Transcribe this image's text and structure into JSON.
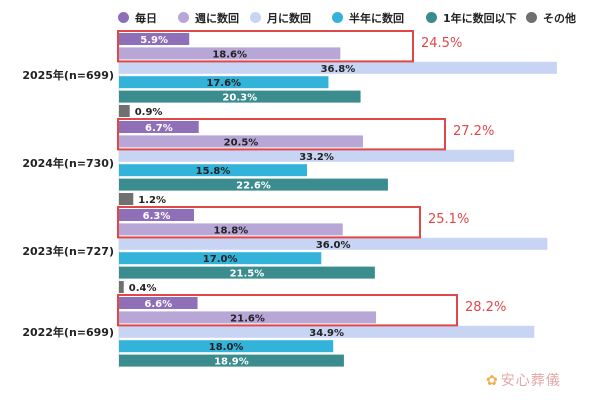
{
  "chart_data": {
    "type": "bar",
    "orientation": "horizontal",
    "legend": [
      {
        "name": "毎日",
        "color": "#8e6fb8"
      },
      {
        "name": "週に数回",
        "color": "#b7a6d6"
      },
      {
        "name": "月に数回",
        "color": "#c7d4f4"
      },
      {
        "name": "半年に数回",
        "color": "#33b2da"
      },
      {
        "name": "1年に数回以下",
        "color": "#3a8c8e"
      },
      {
        "name": "その他",
        "color": "#707070"
      }
    ],
    "groups": [
      {
        "label": "2025年(n=699)",
        "values": [
          5.9,
          18.6,
          36.8,
          17.6,
          20.3,
          0.9
        ],
        "value_labels": [
          "5.9%",
          "18.6%",
          "36.8%",
          "17.6%",
          "20.3%",
          "0.9%"
        ],
        "highlight_sum": "24.5%"
      },
      {
        "label": "2024年(n=730)",
        "values": [
          6.7,
          20.5,
          33.2,
          15.8,
          22.6,
          1.2
        ],
        "value_labels": [
          "6.7%",
          "20.5%",
          "33.2%",
          "15.8%",
          "22.6%",
          "1.2%"
        ],
        "highlight_sum": "27.2%"
      },
      {
        "label": "2023年(n=727)",
        "values": [
          6.3,
          18.8,
          36.0,
          17.0,
          21.5,
          0.4
        ],
        "value_labels": [
          "6.3%",
          "18.8%",
          "36.0%",
          "17.0%",
          "21.5%",
          "0.4%"
        ],
        "highlight_sum": "25.1%"
      },
      {
        "label": "2022年(n=699)",
        "values": [
          6.6,
          21.6,
          34.9,
          18.0,
          18.9
        ],
        "value_labels": [
          "6.6%",
          "21.6%",
          "34.9%",
          "18.0%",
          "18.9%"
        ],
        "highlight_sum": "28.2%"
      }
    ],
    "xlim": [
      0,
      40
    ],
    "grid": false,
    "legend_position": "top"
  },
  "watermark": {
    "text": "安心葬儀",
    "icon": "flower-icon"
  },
  "colors": {
    "highlight_box": "#e04848",
    "sum_text": "#e04848"
  }
}
